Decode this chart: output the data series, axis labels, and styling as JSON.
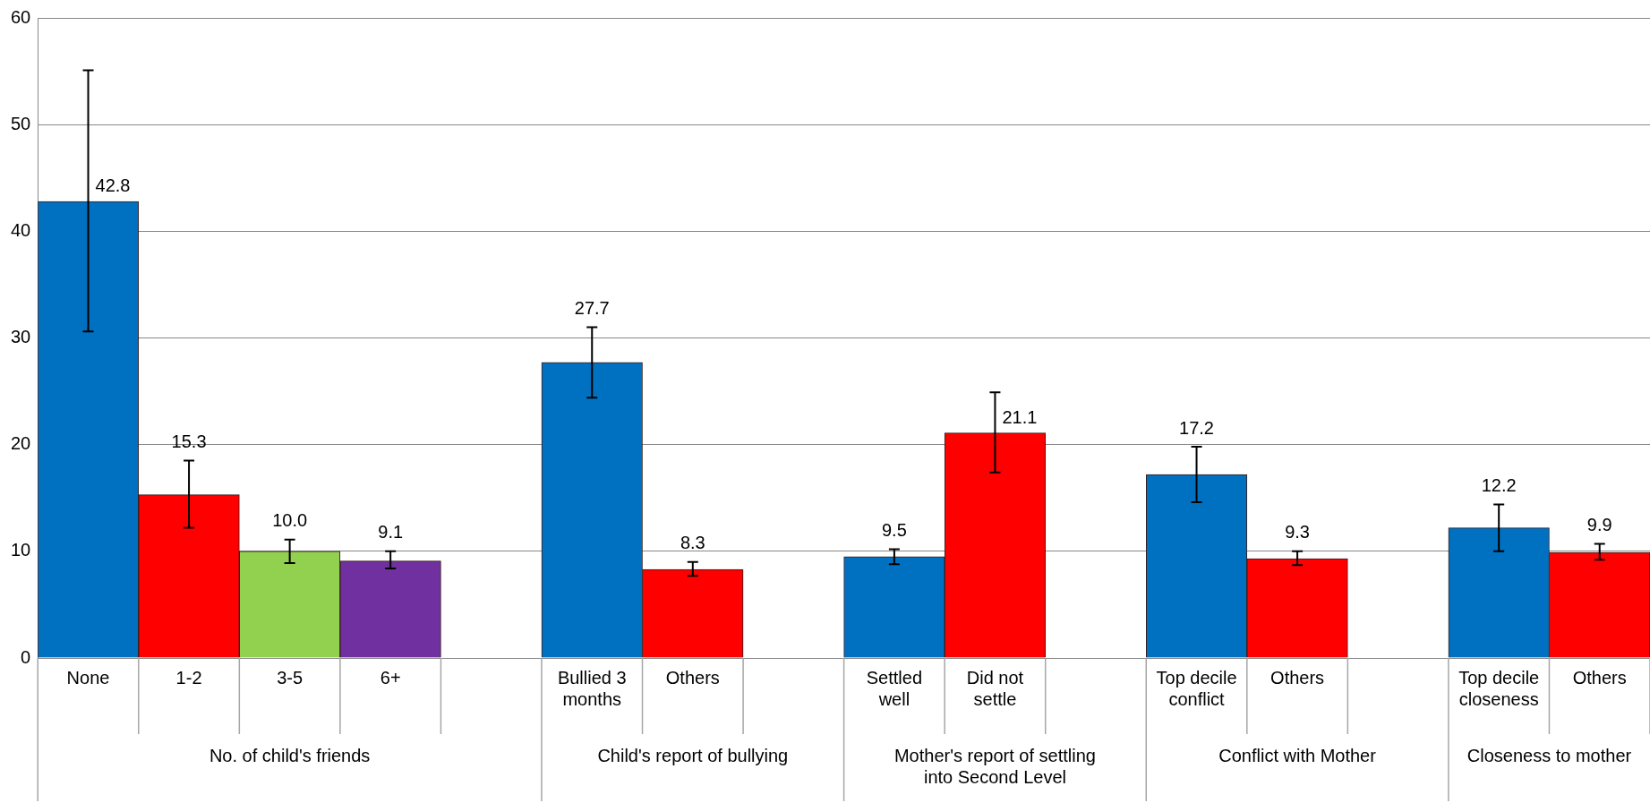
{
  "chart_data": {
    "type": "bar",
    "categories": [
      "None",
      "1-2",
      "3-5",
      "6+",
      null,
      "Bullied 3 months",
      "Others",
      null,
      "Settled well",
      "Did not settle",
      null,
      "Top decile conflict",
      "Others",
      null,
      "Top decile closeness",
      "Others"
    ],
    "series": [
      {
        "colors": [
          "#0070c0",
          "#ff0000",
          "#92d050",
          "#7030a0",
          null,
          "#0070c0",
          "#ff0000",
          null,
          "#0070c0",
          "#ff0000",
          null,
          "#0070c0",
          "#ff0000",
          null,
          "#0070c0",
          "#ff0000"
        ],
        "values": [
          42.8,
          15.3,
          10.0,
          9.1,
          null,
          27.7,
          8.3,
          null,
          9.5,
          21.1,
          null,
          17.2,
          9.3,
          null,
          12.2,
          9.9
        ],
        "value_labels": [
          "42.8",
          "15.3",
          "10.0",
          "9.1",
          null,
          "27.7",
          "8.3",
          null,
          "9.5",
          "21.1",
          null,
          "17.2",
          "9.3",
          null,
          "12.2",
          "9.9"
        ],
        "errors": [
          [
            30.6,
            55.1
          ],
          [
            12.2,
            18.5
          ],
          [
            8.9,
            11.1
          ],
          [
            8.4,
            10.0
          ],
          null,
          [
            24.4,
            31.0
          ],
          [
            7.7,
            9.0
          ],
          null,
          [
            8.8,
            10.2
          ],
          [
            17.4,
            24.9
          ],
          null,
          [
            14.6,
            19.8
          ],
          [
            8.7,
            10.0
          ],
          null,
          [
            10.0,
            14.4
          ],
          [
            9.2,
            10.7
          ]
        ]
      }
    ],
    "ylim": [
      0,
      60
    ],
    "yticks": [
      0,
      10,
      20,
      30,
      40,
      50,
      60
    ],
    "grid": "y",
    "legend": false,
    "annotations": [
      "No. of child's friends",
      "Child's report of bullying",
      "Mother's report of settling into Second Level",
      "Conflict with Mother",
      "Closeness to mother"
    ]
  }
}
